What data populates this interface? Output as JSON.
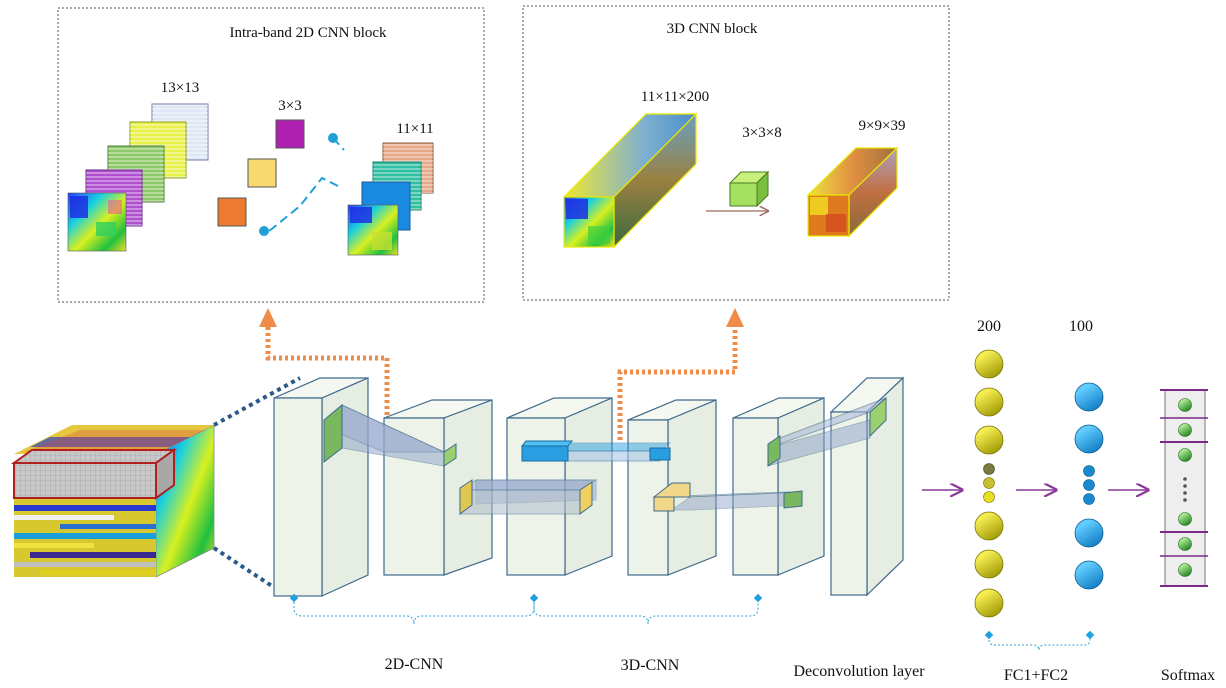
{
  "top_panels": {
    "left_title": "Intra-band  2D CNN block",
    "right_title": "3D CNN block",
    "left_dims": {
      "input": "13×13",
      "kernel": "3×3",
      "output": "11×11"
    },
    "right_dims": {
      "input": "11×11×200",
      "kernel": "3×3×8",
      "output": "9×9×39"
    }
  },
  "layers": {
    "fc1_units": "200",
    "fc2_units": "100"
  },
  "bottom_labels": {
    "cnn2d": "2D-CNN",
    "cnn3d": "3D-CNN",
    "deconv": "Deconvolution layer",
    "fc": "FC1+FC2",
    "softmax": "Softmax"
  },
  "colors": {
    "panel_border": "#555555",
    "orange_arrow": "#f08c4a",
    "purple_arrow": "#8a3a9a",
    "cube_face": "#eef3ea",
    "cube_edge": "#3e6a8c",
    "fc1_node": "#d8cc10",
    "fc2_node": "#1f9ee0",
    "softmax_node": "#3aa23a",
    "dotted_blue": "#2a9fd0"
  }
}
